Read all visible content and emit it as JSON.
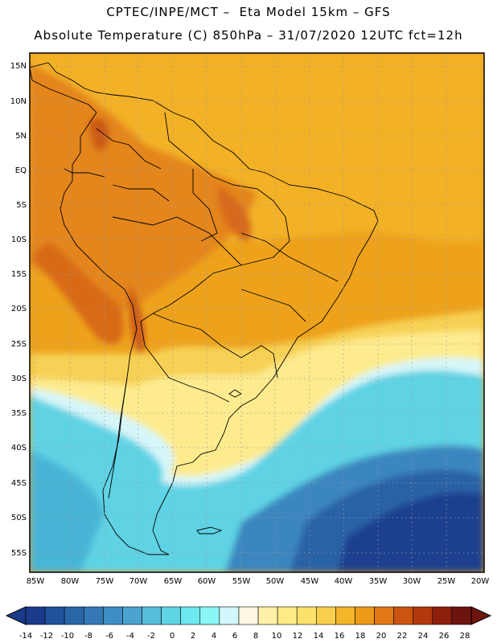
{
  "header": {
    "line1": "CPTEC/INPE/MCT –  Eta Model 15km – GFS",
    "line2": "Absolute Temperature (C) 850hPa – 31/07/2020 12UTC fct=12h"
  },
  "map": {
    "lat_ticks": [
      "15N",
      "10N",
      "5N",
      "EQ",
      "5S",
      "10S",
      "15S",
      "20S",
      "25S",
      "30S",
      "35S",
      "40S",
      "45S",
      "50S",
      "55S"
    ],
    "lon_ticks": [
      "85W",
      "80W",
      "75W",
      "70W",
      "65W",
      "60W",
      "55W",
      "50W",
      "45W",
      "40W",
      "35W",
      "30W",
      "25W",
      "20W"
    ]
  },
  "legend": {
    "labels": [
      "-14",
      "-12",
      "-10",
      "-8",
      "-6",
      "-4",
      "-2",
      "0",
      "2",
      "4",
      "6",
      "8",
      "10",
      "12",
      "14",
      "16",
      "18",
      "20",
      "22",
      "24",
      "26",
      "28"
    ],
    "colors": [
      "#1a3a8a",
      "#20519b",
      "#2966a8",
      "#3479b5",
      "#3e8ec3",
      "#4aa3cf",
      "#55bcda",
      "#5fd4e4",
      "#6de8ee",
      "#8af5f7",
      "#d2f7fa",
      "#fff7e2",
      "#fff2a8",
      "#feea86",
      "#fce16a",
      "#f7cf4d",
      "#f3b52a",
      "#ed9a19",
      "#e07914",
      "#cb5510",
      "#b3380e",
      "#8f1f0d",
      "#6e140f"
    ]
  }
}
